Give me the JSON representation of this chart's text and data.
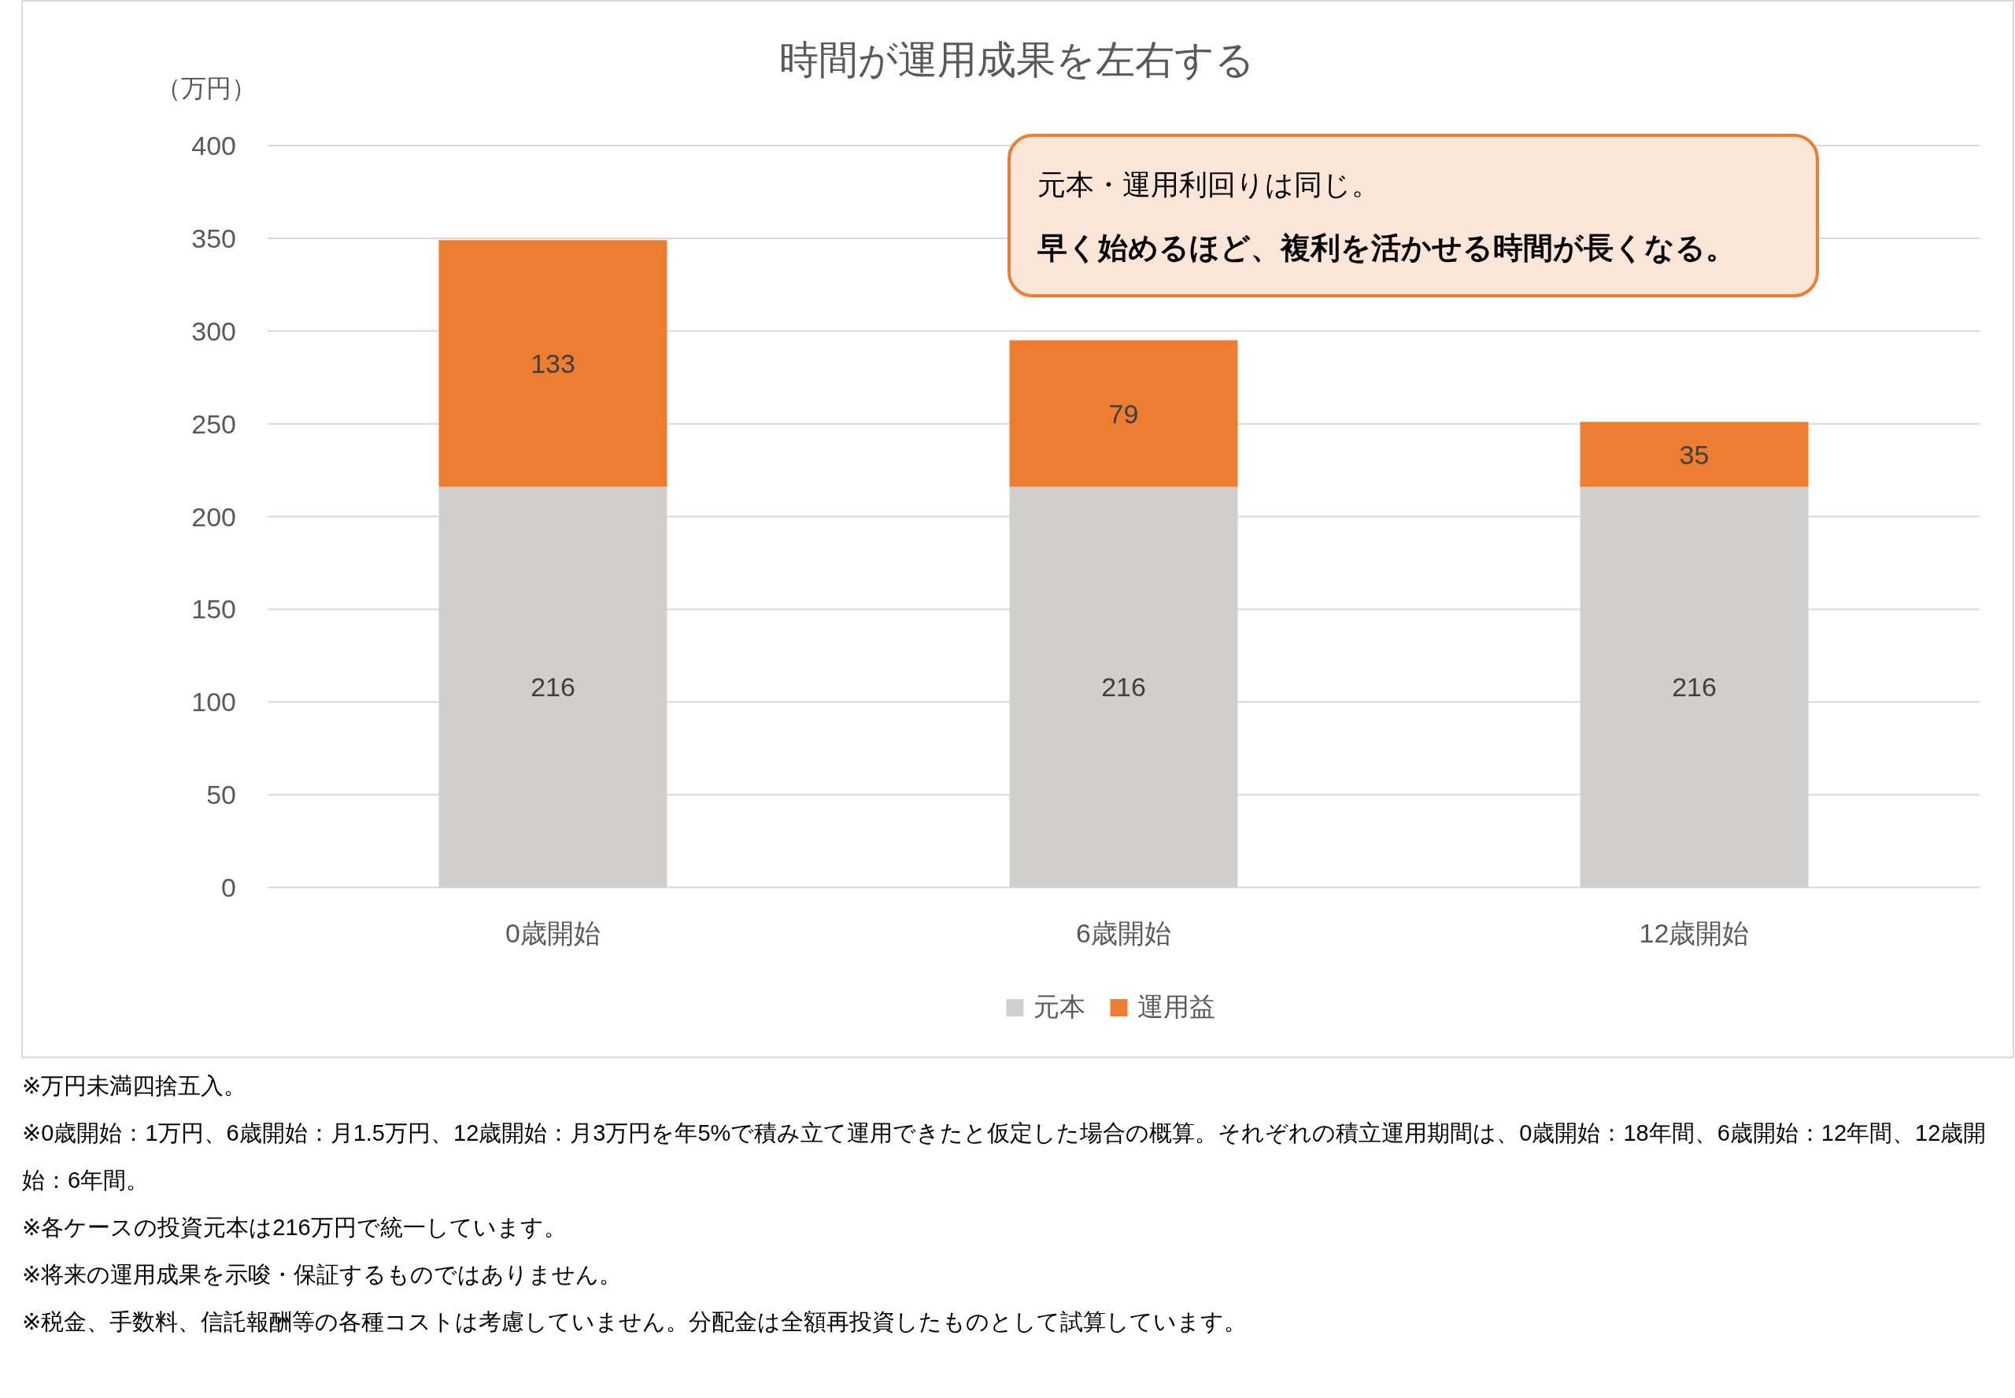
{
  "chart_data": {
    "type": "bar",
    "title": "時間が運用成果を左右する",
    "ylabel": "（万円）",
    "categories": [
      "0歳開始",
      "6歳開始",
      "12歳開始"
    ],
    "series": [
      {
        "name": "元本",
        "color": "#d0cfce",
        "values": [
          216,
          216,
          216
        ]
      },
      {
        "name": "運用益",
        "color": "#ed7d31",
        "values": [
          133,
          79,
          35
        ]
      }
    ],
    "stacked": true,
    "data_labels": true,
    "ylim": [
      0,
      400
    ],
    "yticks": [
      0,
      50,
      100,
      150,
      200,
      250,
      300,
      350,
      400
    ],
    "grid": "y",
    "legend": "bottom",
    "annotations": [
      "元本・運用利回りは同じ。",
      "早く始めるほど、複利を活かせる時間が長くなる。",
      "※万円未満四捨五入。",
      "※0歳開始：1万円、6歳開始：月1.5万円、12歳開始：月3万円を年5%で積み立て運用できたと仮定した場合の概算。それぞれの積立運用期間は、0歳開始：18年間、6歳開始：12年間、12歳開始：6年間。",
      "※各ケースの投資元本は216万円で統一しています。",
      "※将来の運用成果を示唆・保証するものではありません。",
      "※税金、手数料、信託報酬等の各種コストは考慮していません。分配金は全額再投資したものとして試算しています。"
    ]
  }
}
